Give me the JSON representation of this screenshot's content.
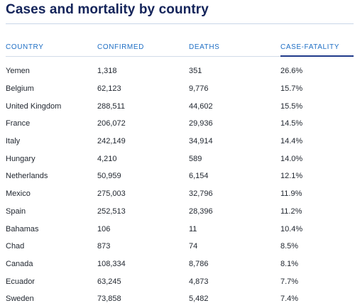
{
  "title": "Cases and mortality by country",
  "table": {
    "columns": [
      "COUNTRY",
      "CONFIRMED",
      "DEATHS",
      "CASE-FATALITY"
    ],
    "sorted_column": "CASE-FATALITY",
    "rows": [
      [
        "Yemen",
        "1,318",
        "351",
        "26.6%"
      ],
      [
        "Belgium",
        "62,123",
        "9,776",
        "15.7%"
      ],
      [
        "United Kingdom",
        "288,511",
        "44,602",
        "15.5%"
      ],
      [
        "France",
        "206,072",
        "29,936",
        "14.5%"
      ],
      [
        "Italy",
        "242,149",
        "34,914",
        "14.4%"
      ],
      [
        "Hungary",
        "4,210",
        "589",
        "14.0%"
      ],
      [
        "Netherlands",
        "50,959",
        "6,154",
        "12.1%"
      ],
      [
        "Mexico",
        "275,003",
        "32,796",
        "11.9%"
      ],
      [
        "Spain",
        "252,513",
        "28,396",
        "11.2%"
      ],
      [
        "Bahamas",
        "106",
        "11",
        "10.4%"
      ],
      [
        "Chad",
        "873",
        "74",
        "8.5%"
      ],
      [
        "Canada",
        "108,334",
        "8,786",
        "8.1%"
      ],
      [
        "Ecuador",
        "63,245",
        "4,873",
        "7.7%"
      ],
      [
        "Sweden",
        "73,858",
        "5,482",
        "7.4%"
      ]
    ]
  },
  "colors": {
    "title": "#14245a",
    "header_text": "#1f6fc5",
    "sorted_underline": "#1f3a8a",
    "rule": "#c9d7e8"
  }
}
